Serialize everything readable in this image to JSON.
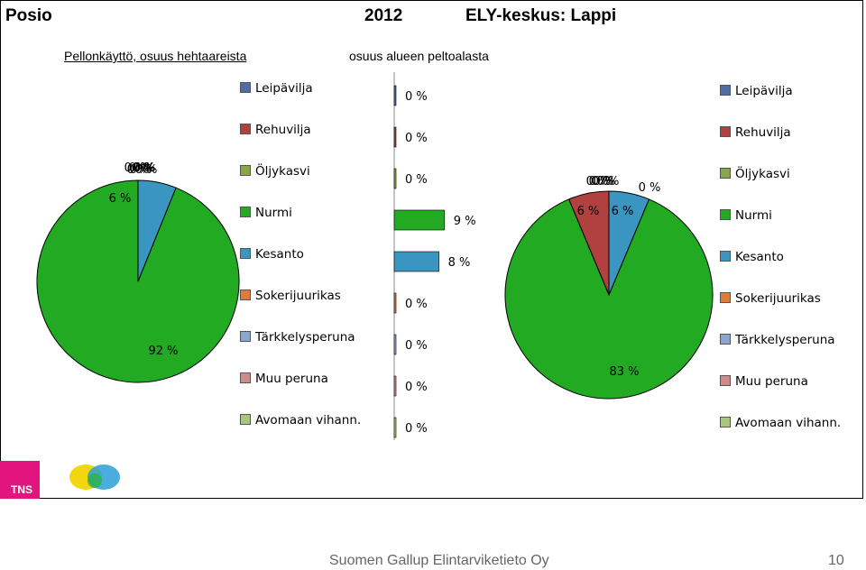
{
  "header": {
    "location": "Posio",
    "year": "2012",
    "region": "ELY-keskus: Lappi"
  },
  "subtitles": {
    "left": "Pellonkäyttö, osuus hehtaareista",
    "middle": "osuus alueen peltoalasta"
  },
  "footer": {
    "company": "Suomen Gallup Elintarviketieto Oy",
    "page": "10"
  },
  "logos": {
    "tns_label": "TNS"
  },
  "legend_items": [
    {
      "label": "Leipävilja",
      "color": "#4f6ea8"
    },
    {
      "label": "Rehuvilja",
      "color": "#b0413e"
    },
    {
      "label": "Öljykasvi",
      "color": "#8aa74a"
    },
    {
      "label": "Nurmi",
      "color": "#22aa22"
    },
    {
      "label": "Kesanto",
      "color": "#3a96c0"
    },
    {
      "label": "Sokerijuurikas",
      "color": "#e07b39"
    },
    {
      "label": "Tärkkelysperuna",
      "color": "#8ea6cf"
    },
    {
      "label": "Muu peruna",
      "color": "#d08c8a"
    },
    {
      "label": "Avomaan vihann.",
      "color": "#a9c77a"
    }
  ],
  "chart_data": [
    {
      "type": "pie",
      "title": "Pellonkäyttö, osuus hehtaareista",
      "categories": [
        "Leipävilja",
        "Rehuvilja",
        "Öljykasvi",
        "Nurmi",
        "Kesanto",
        "Sokerijuurikas",
        "Tärkkelysperuna",
        "Muu peruna",
        "Avomaan vihann."
      ],
      "values": [
        0,
        0,
        0,
        92,
        6,
        0,
        0,
        0,
        0
      ],
      "data_labels": [
        "0 %",
        "0 %",
        "0 %",
        "92 %",
        "6 %",
        "0 %",
        "0 %",
        "0 %",
        "0 %"
      ]
    },
    {
      "type": "bar",
      "title": "osuus alueen peltoalasta",
      "categories": [
        "Leipävilja",
        "Rehuvilja",
        "Öljykasvi",
        "Nurmi",
        "Kesanto",
        "Sokerijuurikas",
        "Tärkkelysperuna",
        "Muu peruna",
        "Avomaan vihann."
      ],
      "values": [
        0,
        0,
        0,
        9,
        8,
        0,
        0,
        0,
        0
      ],
      "data_labels": [
        "0 %",
        "0 %",
        "0 %",
        "9 %",
        "8 %",
        "0 %",
        "0 %",
        "0 %",
        "0 %"
      ]
    },
    {
      "type": "pie",
      "title": "",
      "categories": [
        "Leipävilja",
        "Rehuvilja",
        "Öljykasvi",
        "Nurmi",
        "Kesanto",
        "Sokerijuurikas",
        "Tärkkelysperuna",
        "Muu peruna",
        "Avomaan vihann."
      ],
      "values": [
        0,
        6,
        0,
        83,
        6,
        0,
        0,
        0,
        0
      ],
      "data_labels": [
        "0 %",
        "6 %",
        "0 %",
        "83 %",
        "6 %",
        "0 %",
        "0 %",
        "0 %",
        "0 %"
      ]
    }
  ]
}
